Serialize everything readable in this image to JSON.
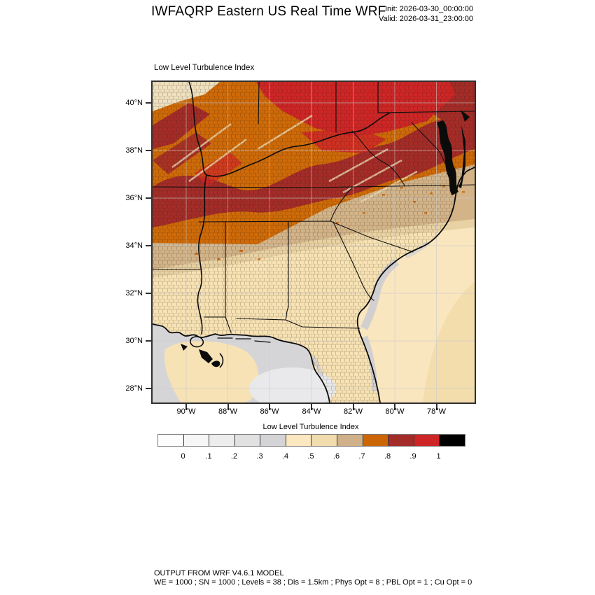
{
  "header": {
    "title": "IWFAQRP Eastern US Real Time WRF",
    "init_label": "Init: 2026-03-30_00:00:00",
    "valid_label": "Valid: 2026-03-31_23:00:00"
  },
  "map": {
    "field_label": "Low Level Turbulence Index",
    "lat_ticks": [
      "40°N",
      "38°N",
      "36°N",
      "34°N",
      "32°N",
      "30°N",
      "28°N"
    ],
    "lon_ticks": [
      "90°W",
      "88°W",
      "86°W",
      "84°W",
      "82°W",
      "80°W",
      "78°W"
    ]
  },
  "colorbar": {
    "title": "Low Level Turbulence Index",
    "tick_labels": [
      "0",
      ".1",
      ".2",
      ".3",
      ".4",
      ".5",
      ".6",
      ".7",
      ".8",
      ".9",
      "1"
    ],
    "colors": [
      "#FDFDFD",
      "#F6F6F6",
      "#EDEDEE",
      "#E1E1E2",
      "#D4D4D6",
      "#FBE7C0",
      "#F1DCAE",
      "#D0B088",
      "#CC6604",
      "#A42C28",
      "#CE2626",
      "#000000"
    ]
  },
  "legend_scale": {
    "type": "filled-contour",
    "values": [
      0,
      0.1,
      0.2,
      0.3,
      0.4,
      0.5,
      0.6,
      0.7,
      0.8,
      0.9,
      1
    ]
  },
  "footer": {
    "line1": "OUTPUT FROM WRF V4.6.1 MODEL",
    "line2": "WE = 1000 ; SN = 1000 ; Levels = 38 ; Dis = 1.5km ; Phys Opt = 8 ; PBL Opt = 1 ; Cu Opt = 0"
  }
}
